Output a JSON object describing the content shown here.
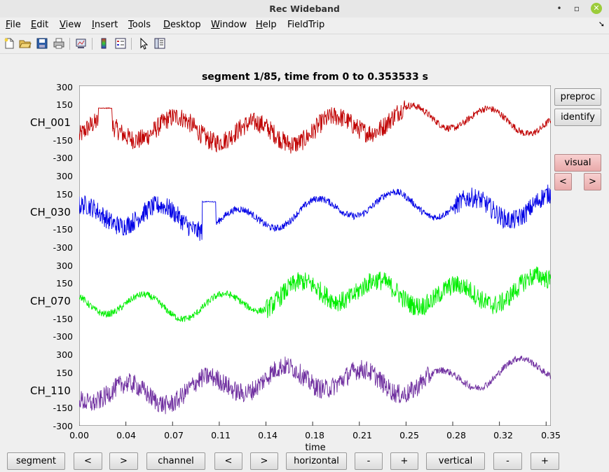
{
  "window": {
    "title": "Rec Wideband",
    "min_label": "•",
    "max_label": "▫",
    "close_label": "✕"
  },
  "menu": {
    "items": [
      {
        "label": "File",
        "accel": "F",
        "rest": "ile"
      },
      {
        "label": "Edit",
        "accel": "E",
        "rest": "dit"
      },
      {
        "label": "View",
        "accel": "V",
        "rest": "iew"
      },
      {
        "label": "Insert",
        "accel": "I",
        "rest": "nsert"
      },
      {
        "label": "Tools",
        "accel": "T",
        "rest": "ools"
      },
      {
        "label": "Desktop",
        "accel": "D",
        "rest": "esktop"
      },
      {
        "label": "Window",
        "accel": "W",
        "rest": "indow"
      },
      {
        "label": "Help",
        "accel": "H",
        "rest": "elp"
      },
      {
        "label": "FieldTrip",
        "accel": "",
        "rest": "FieldTrip"
      }
    ],
    "overflow_icon": "arrow-icon"
  },
  "toolbar": {
    "icons": [
      "new-figure-icon",
      "open-icon",
      "save-icon",
      "print-icon",
      "link-plot-icon",
      "colorbar-icon",
      "legend-icon",
      "pointer-icon",
      "property-editor-icon"
    ]
  },
  "plot": {
    "title": "segment 1/85, time from 0 to 0.353533 s",
    "xlabel": "time",
    "xticks": [
      "0.00",
      "0.04",
      "0.07",
      "0.11",
      "0.14",
      "0.18",
      "0.21",
      "0.25",
      "0.28",
      "0.32",
      "0.35"
    ],
    "channels": [
      {
        "name": "CH_001",
        "color": "#c00000",
        "yticks": [
          "300",
          "150",
          "-150",
          "-300"
        ]
      },
      {
        "name": "CH_030",
        "color": "#0000e6",
        "yticks": [
          "300",
          "150",
          "-150",
          "-300"
        ]
      },
      {
        "name": "CH_070",
        "color": "#00ee00",
        "yticks": [
          "300",
          "150",
          "-150",
          "-300"
        ]
      },
      {
        "name": "CH_110",
        "color": "#7030a0",
        "yticks": [
          "300",
          "150",
          "-150",
          "-300"
        ]
      }
    ]
  },
  "chart_data": {
    "type": "line",
    "title": "segment 1/85, time from 0 to 0.353533 s",
    "xlabel": "time",
    "ylabel": "",
    "xlim": [
      0,
      0.353533
    ],
    "ylim_per_channel": [
      -300,
      300
    ],
    "series": [
      {
        "name": "CH_001",
        "color": "#c00000"
      },
      {
        "name": "CH_030",
        "color": "#0000e6"
      },
      {
        "name": "CH_070",
        "color": "#00ee00"
      },
      {
        "name": "CH_110",
        "color": "#7030a0"
      }
    ]
  },
  "side_buttons": {
    "preproc": "preproc",
    "identify": "identify",
    "visual": "visual",
    "prev": "<",
    "next": ">"
  },
  "bottom_buttons": {
    "segment": "segment",
    "seg_prev": "<",
    "seg_next": ">",
    "channel": "channel",
    "ch_prev": "<",
    "ch_next": ">",
    "horizontal": "horizontal",
    "h_minus": "-",
    "h_plus": "+",
    "vertical": "vertical",
    "v_minus": "-",
    "v_plus": "+"
  }
}
